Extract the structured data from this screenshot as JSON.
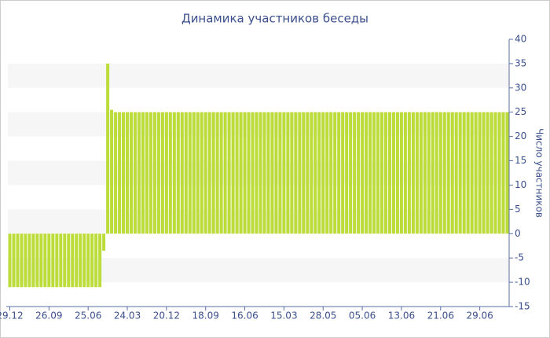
{
  "chart_data": {
    "type": "bar",
    "title": "Динамика участников беседы",
    "y_label": "Число участников",
    "categories": [
      "29.12",
      null,
      null,
      null,
      null,
      null,
      null,
      null,
      null,
      null,
      "26.09",
      null,
      null,
      null,
      null,
      null,
      null,
      null,
      null,
      null,
      "25.06",
      null,
      null,
      null,
      null,
      null,
      null,
      null,
      null,
      null,
      "24.03",
      null,
      null,
      null,
      null,
      null,
      null,
      null,
      null,
      null,
      "20.12",
      null,
      null,
      null,
      null,
      null,
      null,
      null,
      null,
      null,
      "18.09",
      null,
      null,
      null,
      null,
      null,
      null,
      null,
      null,
      null,
      "16.06",
      null,
      null,
      null,
      null,
      null,
      null,
      null,
      null,
      null,
      "15.03",
      null,
      null,
      null,
      null,
      null,
      null,
      null,
      null,
      null,
      "28.05",
      null,
      null,
      null,
      null,
      null,
      null,
      null,
      null,
      null,
      "05.06",
      null,
      null,
      null,
      null,
      null,
      null,
      null,
      null,
      null,
      "13.06",
      null,
      null,
      null,
      null,
      null,
      null,
      null,
      null,
      null,
      "21.06",
      null,
      null,
      null,
      null,
      null,
      null,
      null,
      null,
      null,
      "29.06",
      null,
      null,
      null,
      null,
      null,
      null,
      null
    ],
    "values": [
      -11,
      -11,
      -11,
      -11,
      -11,
      -11,
      -11,
      -11,
      -11,
      -11,
      -11,
      -11,
      -11,
      -11,
      -11,
      -11,
      -11,
      -11,
      -11,
      -11,
      -11,
      -11,
      -11,
      -11,
      -3.5,
      35,
      25.5,
      25,
      25,
      25,
      25,
      25,
      25,
      25,
      25,
      25,
      25,
      25,
      25,
      25,
      25,
      25,
      25,
      25,
      25,
      25,
      25,
      25,
      25,
      25,
      25,
      25,
      25,
      25,
      25,
      25,
      25,
      25,
      25,
      25,
      25,
      25,
      25,
      25,
      25,
      25,
      25,
      25,
      25,
      25,
      25,
      25,
      25,
      25,
      25,
      25,
      25,
      25,
      25,
      25,
      25,
      25,
      25,
      25,
      25,
      25,
      25,
      25,
      25,
      25,
      25,
      25,
      25,
      25,
      25,
      25,
      25,
      25,
      25,
      25,
      25,
      25,
      25,
      25,
      25,
      25,
      25,
      25,
      25,
      25,
      25,
      25,
      25,
      25,
      25,
      25,
      25,
      25,
      25,
      25,
      25,
      25,
      25,
      25,
      25,
      25,
      25,
      25
    ],
    "color": "#bcdc3a",
    "ylim": [
      -15,
      40
    ],
    "yticks": [
      -15,
      -10,
      -5,
      0,
      5,
      10,
      15,
      20,
      25,
      30,
      35,
      40
    ],
    "grid": true
  }
}
